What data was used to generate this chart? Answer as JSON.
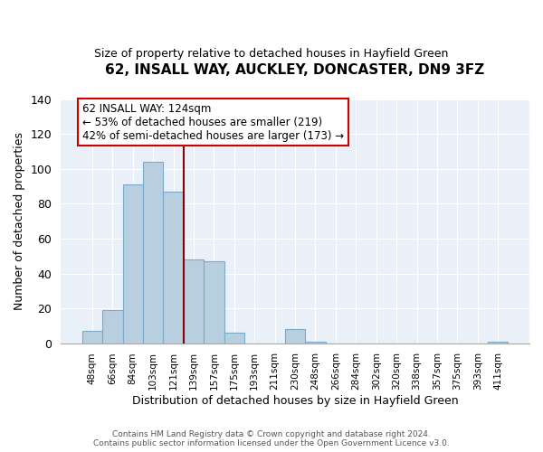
{
  "title": "62, INSALL WAY, AUCKLEY, DONCASTER, DN9 3FZ",
  "subtitle": "Size of property relative to detached houses in Hayfield Green",
  "xlabel": "Distribution of detached houses by size in Hayfield Green",
  "ylabel": "Number of detached properties",
  "categories": [
    "48sqm",
    "66sqm",
    "84sqm",
    "103sqm",
    "121sqm",
    "139sqm",
    "157sqm",
    "175sqm",
    "193sqm",
    "211sqm",
    "230sqm",
    "248sqm",
    "266sqm",
    "284sqm",
    "302sqm",
    "320sqm",
    "338sqm",
    "357sqm",
    "375sqm",
    "393sqm",
    "411sqm"
  ],
  "values": [
    7,
    19,
    91,
    104,
    87,
    48,
    47,
    6,
    0,
    0,
    8,
    1,
    0,
    0,
    0,
    0,
    0,
    0,
    0,
    0,
    1
  ],
  "bar_color": "#b8cfe0",
  "bar_edge_color": "#7aaac8",
  "vline_color": "#8b0000",
  "vline_x_index": 4,
  "annotation_line1": "62 INSALL WAY: 124sqm",
  "annotation_line2": "← 53% of detached houses are smaller (219)",
  "annotation_line3": "42% of semi-detached houses are larger (173) →",
  "annotation_box_facecolor": "#ffffff",
  "annotation_box_edgecolor": "#cc0000",
  "ylim": [
    0,
    140
  ],
  "yticks": [
    0,
    20,
    40,
    60,
    80,
    100,
    120,
    140
  ],
  "footer_line1": "Contains HM Land Registry data © Crown copyright and database right 2024.",
  "footer_line2": "Contains public sector information licensed under the Open Government Licence v3.0.",
  "background_color": "#ffffff",
  "plot_bg_color": "#eaf0f8",
  "grid_color": "#ffffff"
}
